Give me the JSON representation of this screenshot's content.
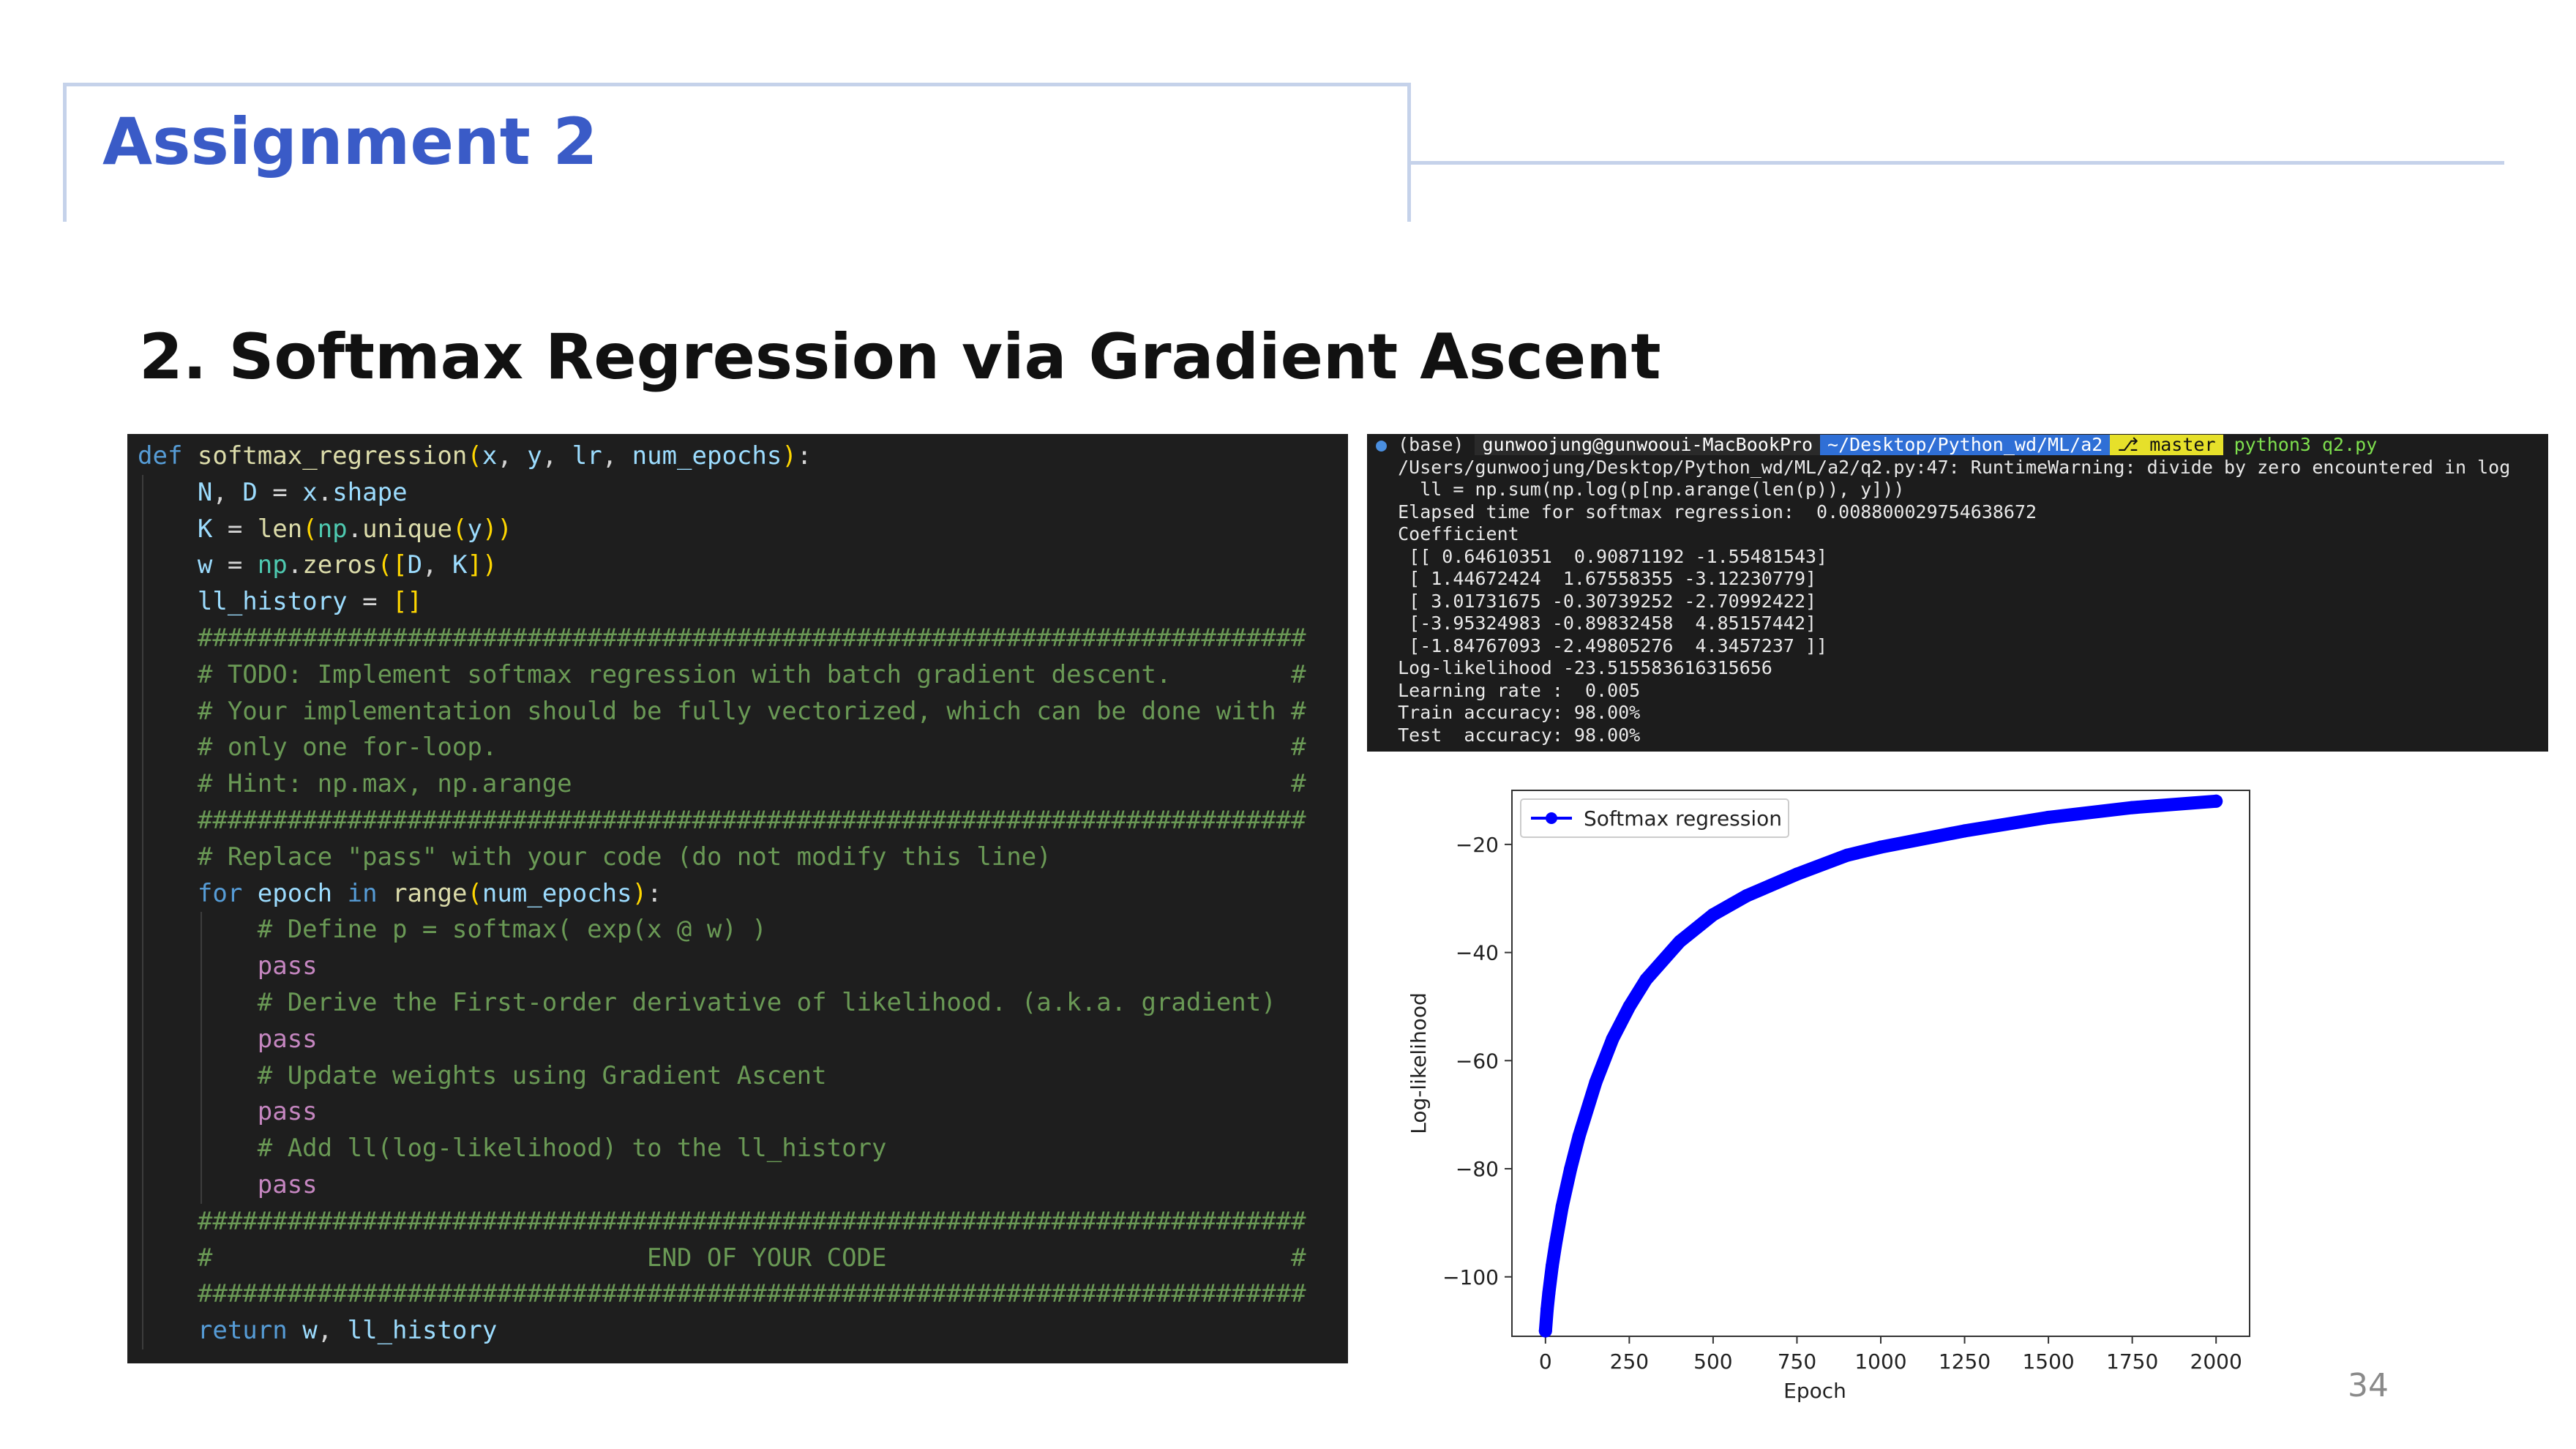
{
  "slide": {
    "title": "Assignment 2",
    "subtitle": "2. Softmax Regression via Gradient Ascent",
    "page_number": "34"
  },
  "code": {
    "lines": [
      "def softmax_regression(x, y, lr, num_epochs):",
      "    N, D = x.shape",
      "    K = len(np.unique(y))",
      "    w = np.zeros([D, K])",
      "    ll_history = []",
      "    ##########################################################################",
      "    # TODO: Implement softmax regression with batch gradient descent.        #",
      "    # Your implementation should be fully vectorized, which can be done with #",
      "    # only one for-loop.                                                     #",
      "    # Hint: np.max, np.arange                                                #",
      "    ##########################################################################",
      "    # Replace \"pass\" with your code (do not modify this line)",
      "    for epoch in range(num_epochs):",
      "        # Define p = softmax( exp(x @ w) )",
      "        pass",
      "        # Derive the First-order derivative of likelihood. (a.k.a. gradient)",
      "        pass",
      "        # Update weights using Gradient Ascent",
      "        pass",
      "        # Add ll(log-likelihood) to the ll_history",
      "        pass",
      "    ##########################################################################",
      "    #                             END OF YOUR CODE                           #",
      "    ##########################################################################",
      "    return w, ll_history"
    ]
  },
  "terminal": {
    "prompt": {
      "env": "(base)",
      "user_host": "gunwoojung@gunwooui-MacBookPro",
      "path": "~/Desktop/Python_wd/ML/a2",
      "branch": "master",
      "command": "python3 q2.py"
    },
    "lines": [
      "/Users/gunwoojung/Desktop/Python_wd/ML/a2/q2.py:47: RuntimeWarning: divide by zero encountered in log",
      "  ll = np.sum(np.log(p[np.arange(len(p)), y]))",
      "Elapsed time for softmax regression:  0.008800029754638672",
      "Coefficient",
      " [[ 0.64610351  0.90871192 -1.55481543]",
      " [ 1.44672424  1.67558355 -3.12230779]",
      " [ 3.01731675 -0.30739252 -2.70992422]",
      " [-3.95324983 -0.89832458  4.85157442]",
      " [-1.84767093 -2.49805276  4.3457237 ]]",
      "Log-likelihood -23.515583616315656",
      "Learning rate :  0.005",
      "Train accuracy: 98.00%",
      "Test  accuracy: 98.00%"
    ]
  },
  "chart_data": {
    "type": "line",
    "title": "",
    "xlabel": "Epoch",
    "ylabel": "Log-likelihood",
    "xlim": [
      -100,
      2100
    ],
    "ylim": [
      -111,
      -10
    ],
    "xticks": [
      "0",
      "250",
      "500",
      "750",
      "1000",
      "1250",
      "1500",
      "1750",
      "2000"
    ],
    "yticks": [
      "−20",
      "−40",
      "−60",
      "−80",
      "−100"
    ],
    "legend_position": "top-left",
    "series": [
      {
        "name": "Softmax regression",
        "color": "#0000ff",
        "marker": "o",
        "x": [
          0,
          5,
          10,
          20,
          30,
          50,
          75,
          100,
          150,
          200,
          250,
          300,
          400,
          500,
          600,
          750,
          900,
          1000,
          1250,
          1500,
          1750,
          2000
        ],
        "y": [
          -110,
          -106,
          -103,
          -98,
          -94,
          -87,
          -80,
          -74,
          -64,
          -56,
          -50,
          -45,
          -38,
          -33,
          -29.5,
          -25.5,
          -22,
          -20.5,
          -17.5,
          -15,
          -13.2,
          -12
        ]
      }
    ]
  }
}
